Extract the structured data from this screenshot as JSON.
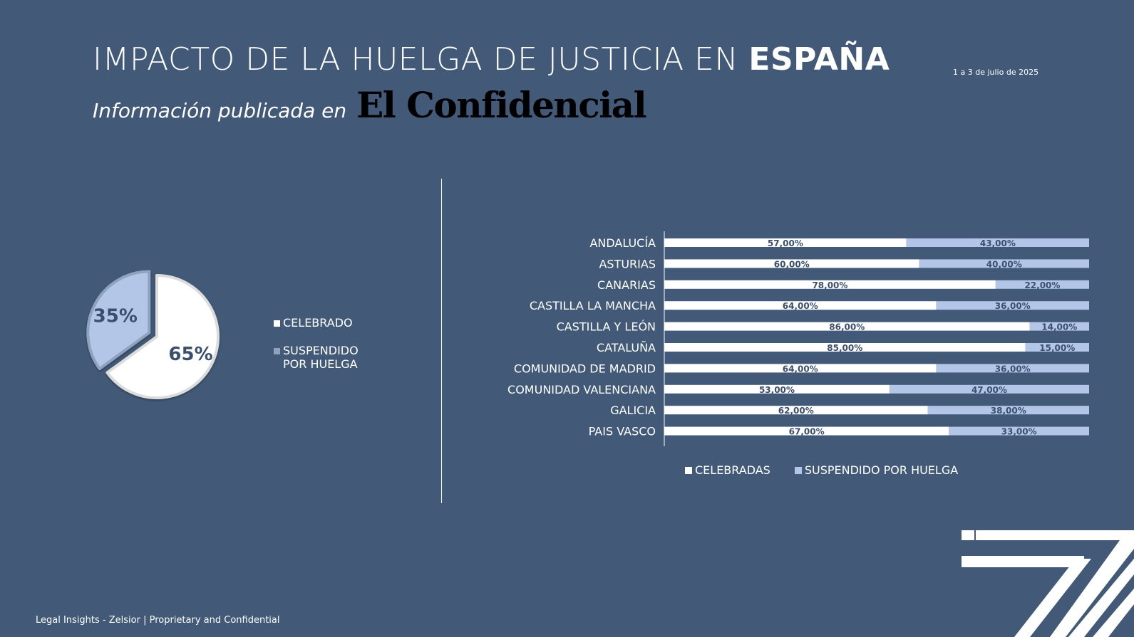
{
  "header": {
    "title_main": "IMPACTO DE LA HUELGA DE JUSTICIA EN",
    "title_bold": "ESPAÑA",
    "date": "1 a 3 de julio de 2025",
    "subtitle": "Información publicada en",
    "source_logo_text": "El Confidencial"
  },
  "colors": {
    "background": "#425a78",
    "celebrado": "#ffffff",
    "suspendido": "#b4c6e7",
    "label_dark": "#3a4f6b"
  },
  "chart_data": [
    {
      "type": "pie",
      "slices": [
        {
          "label": "CELEBRADO",
          "value": 65,
          "display": "65%"
        },
        {
          "label": "SUSPENDIDO POR HUELGA",
          "value": 35,
          "display": "35%"
        }
      ],
      "legend": [
        "CELEBRADO",
        "SUSPENDIDO POR HUELGA"
      ],
      "legend_position": "right"
    },
    {
      "type": "bar",
      "orientation": "horizontal",
      "stacked": true,
      "percent": true,
      "categories": [
        "ANDALUCÍA",
        "ASTURIAS",
        "CANARIAS",
        "CASTILLA LA MANCHA",
        "CASTILLA Y LEÓN",
        "CATALUÑA",
        "COMUNIDAD DE MADRID",
        "COMUNIDAD VALENCIANA",
        "GALICIA",
        "PAIS VASCO"
      ],
      "series": [
        {
          "name": "CELEBRADAS",
          "values": [
            57,
            60,
            78,
            64,
            86,
            85,
            64,
            53,
            62,
            67
          ],
          "labels": [
            "57,00%",
            "60,00%",
            "78,00%",
            "64,00%",
            "86,00%",
            "85,00%",
            "64,00%",
            "53,00%",
            "62,00%",
            "67,00%"
          ]
        },
        {
          "name": "SUSPENDIDO POR HUELGA",
          "values": [
            43,
            40,
            22,
            36,
            14,
            15,
            36,
            47,
            38,
            33
          ],
          "labels": [
            "43,00%",
            "40,00%",
            "22,00%",
            "36,00%",
            "14,00%",
            "15,00%",
            "36,00%",
            "47,00%",
            "38,00%",
            "33,00%"
          ]
        }
      ],
      "xlim": [
        0,
        100
      ],
      "legend_position": "bottom"
    }
  ],
  "footer": "Legal Insights - Zelsior | Proprietary and Confidential",
  "icons": [
    "zelsior-logo-icon"
  ]
}
